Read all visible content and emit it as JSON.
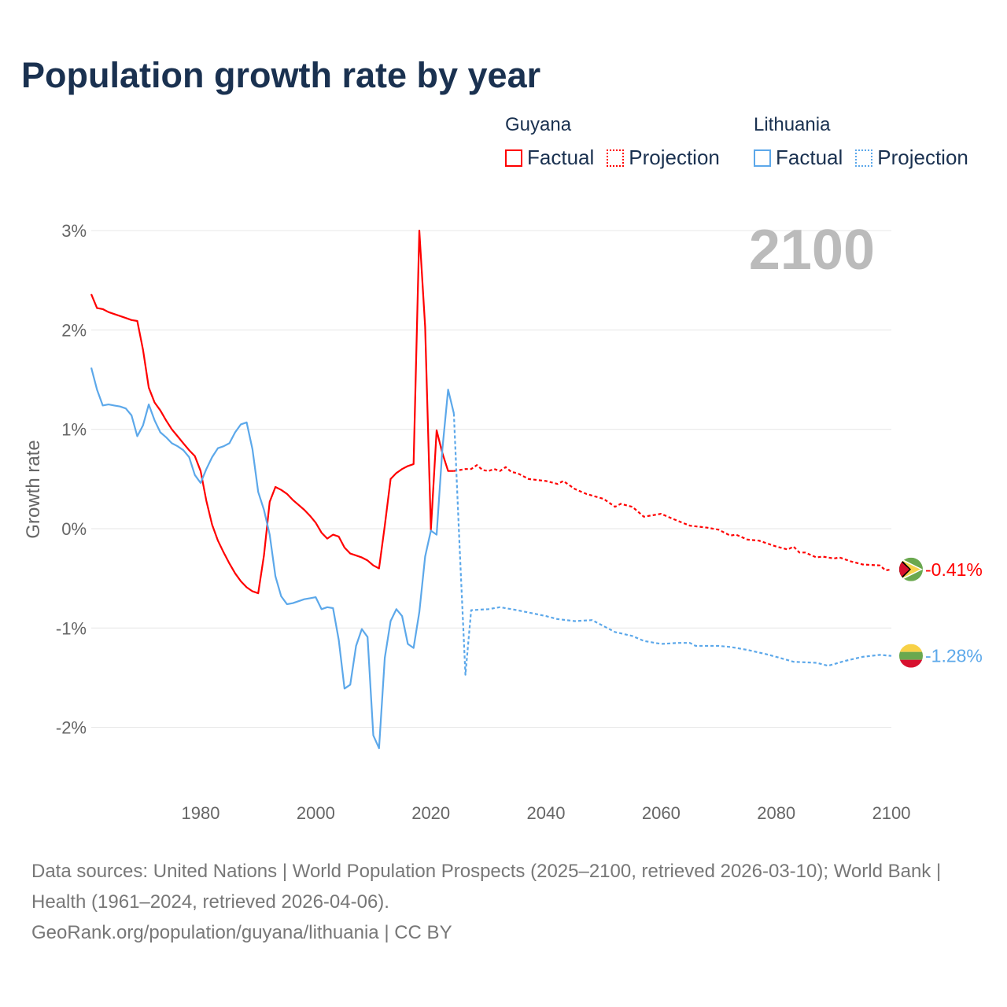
{
  "title": "Population growth rate by year",
  "legend": {
    "groups": [
      {
        "name": "Guyana",
        "factual": "Factual",
        "projection": "Projection",
        "color": "#ff0000"
      },
      {
        "name": "Lithuania",
        "factual": "Factual",
        "projection": "Projection",
        "color": "#5ca8ea"
      }
    ]
  },
  "source_lines": [
    "Data sources: United Nations | World Population Prospects (2025–2100, retrieved 2026-03-10); World Bank | Health (1961–2024, retrieved 2026-04-06).",
    "GeoRank.org/population/guyana/lithuania | CC BY"
  ],
  "chart_data": {
    "type": "line",
    "title": "Population growth rate by year",
    "ylabel": "Growth rate",
    "xlabel": "",
    "year_label": "2100",
    "xlim": [
      1961,
      2100
    ],
    "ylim": [
      -2.6,
      3.2
    ],
    "x_ticks": [
      1980,
      2000,
      2020,
      2040,
      2060,
      2080,
      2100
    ],
    "y_ticks": [
      -2,
      -1,
      0,
      1,
      2,
      3
    ],
    "y_tick_labels": [
      "-2%",
      "-1%",
      "0%",
      "1%",
      "2%",
      "3%"
    ],
    "grid": true,
    "legend_placement": "top-right",
    "series": [
      {
        "name": "Guyana",
        "kind": "Factual",
        "color": "#ff0000",
        "x": [
          1961,
          1962,
          1963,
          1964,
          1965,
          1966,
          1967,
          1968,
          1969,
          1970,
          1971,
          1972,
          1973,
          1974,
          1975,
          1976,
          1977,
          1978,
          1979,
          1980,
          1981,
          1982,
          1983,
          1984,
          1985,
          1986,
          1987,
          1988,
          1989,
          1990,
          1991,
          1992,
          1993,
          1994,
          1995,
          1996,
          1997,
          1998,
          1999,
          2000,
          2001,
          2002,
          2003,
          2004,
          2005,
          2006,
          2007,
          2008,
          2009,
          2010,
          2011,
          2012,
          2013,
          2014,
          2015,
          2016,
          2017,
          2018,
          2019,
          2020,
          2021,
          2022,
          2023,
          2024
        ],
        "y": [
          2.36,
          2.22,
          2.21,
          2.18,
          2.16,
          2.14,
          2.12,
          2.1,
          2.09,
          1.8,
          1.42,
          1.27,
          1.19,
          1.09,
          1.0,
          0.93,
          0.86,
          0.79,
          0.73,
          0.58,
          0.28,
          0.04,
          -0.12,
          -0.24,
          -0.35,
          -0.45,
          -0.53,
          -0.59,
          -0.63,
          -0.65,
          -0.27,
          0.27,
          0.42,
          0.39,
          0.35,
          0.29,
          0.24,
          0.19,
          0.13,
          0.06,
          -0.04,
          -0.1,
          -0.06,
          -0.08,
          -0.19,
          -0.25,
          -0.27,
          -0.29,
          -0.32,
          -0.37,
          -0.4,
          0.03,
          0.5,
          0.56,
          0.6,
          0.63,
          0.65,
          3.0,
          2.03,
          -0.01,
          0.99,
          0.76,
          0.58,
          0.58
        ]
      },
      {
        "name": "Guyana",
        "kind": "Projection",
        "color": "#ff0000",
        "x": [
          2024,
          2026,
          2027,
          2028,
          2029,
          2030,
          2031,
          2032,
          2033,
          2034,
          2035,
          2037,
          2040,
          2042,
          2043,
          2045,
          2047,
          2050,
          2052,
          2053,
          2055,
          2057,
          2060,
          2062,
          2065,
          2068,
          2070,
          2072,
          2073,
          2075,
          2077,
          2080,
          2082,
          2083,
          2084,
          2085,
          2087,
          2088,
          2090,
          2091,
          2093,
          2095,
          2098,
          2099,
          2100
        ],
        "y": [
          0.58,
          0.6,
          0.6,
          0.64,
          0.59,
          0.58,
          0.6,
          0.58,
          0.62,
          0.57,
          0.56,
          0.5,
          0.48,
          0.45,
          0.48,
          0.4,
          0.35,
          0.3,
          0.22,
          0.25,
          0.22,
          0.12,
          0.15,
          0.1,
          0.03,
          0.01,
          -0.01,
          -0.07,
          -0.06,
          -0.11,
          -0.12,
          -0.18,
          -0.21,
          -0.18,
          -0.24,
          -0.24,
          -0.29,
          -0.28,
          -0.3,
          -0.29,
          -0.33,
          -0.36,
          -0.37,
          -0.42,
          -0.41
        ]
      },
      {
        "name": "Lithuania",
        "kind": "Factual",
        "color": "#5ca8ea",
        "x": [
          1961,
          1962,
          1963,
          1964,
          1965,
          1966,
          1967,
          1968,
          1969,
          1970,
          1971,
          1972,
          1973,
          1974,
          1975,
          1976,
          1977,
          1978,
          1979,
          1980,
          1981,
          1982,
          1983,
          1984,
          1985,
          1986,
          1987,
          1988,
          1989,
          1990,
          1991,
          1992,
          1993,
          1994,
          1995,
          1996,
          1997,
          1998,
          1999,
          2000,
          2001,
          2002,
          2003,
          2004,
          2005,
          2006,
          2007,
          2008,
          2009,
          2010,
          2011,
          2012,
          2013,
          2014,
          2015,
          2016,
          2017,
          2018,
          2019,
          2020,
          2021,
          2022,
          2023,
          2024
        ],
        "y": [
          1.62,
          1.4,
          1.24,
          1.25,
          1.24,
          1.23,
          1.21,
          1.14,
          0.93,
          1.04,
          1.25,
          1.09,
          0.97,
          0.92,
          0.86,
          0.83,
          0.79,
          0.72,
          0.54,
          0.46,
          0.6,
          0.72,
          0.81,
          0.83,
          0.86,
          0.97,
          1.05,
          1.07,
          0.8,
          0.37,
          0.19,
          -0.06,
          -0.48,
          -0.68,
          -0.76,
          -0.75,
          -0.73,
          -0.71,
          -0.7,
          -0.69,
          -0.81,
          -0.79,
          -0.8,
          -1.12,
          -1.61,
          -1.57,
          -1.18,
          -1.01,
          -1.09,
          -2.08,
          -2.21,
          -1.3,
          -0.93,
          -0.81,
          -0.88,
          -1.16,
          -1.2,
          -0.84,
          -0.28,
          -0.02,
          -0.06,
          0.8,
          1.4,
          1.16
        ]
      },
      {
        "name": "Lithuania",
        "kind": "Projection",
        "color": "#5ca8ea",
        "x": [
          2024,
          2025,
          2026,
          2027,
          2030,
          2032,
          2035,
          2040,
          2042,
          2045,
          2048,
          2050,
          2052,
          2055,
          2057,
          2060,
          2063,
          2065,
          2066,
          2070,
          2072,
          2075,
          2078,
          2080,
          2083,
          2087,
          2089,
          2092,
          2095,
          2098,
          2100
        ],
        "y": [
          1.16,
          -0.2,
          -1.47,
          -0.82,
          -0.81,
          -0.79,
          -0.82,
          -0.88,
          -0.91,
          -0.93,
          -0.92,
          -0.98,
          -1.04,
          -1.08,
          -1.13,
          -1.16,
          -1.15,
          -1.15,
          -1.18,
          -1.18,
          -1.19,
          -1.22,
          -1.26,
          -1.29,
          -1.34,
          -1.35,
          -1.38,
          -1.33,
          -1.29,
          -1.27,
          -1.28
        ]
      }
    ],
    "end_labels": [
      {
        "name": "Guyana",
        "value": -0.41,
        "label": "-0.41%",
        "color": "#ff0000"
      },
      {
        "name": "Lithuania",
        "value": -1.28,
        "label": "-1.28%",
        "color": "#5ca8ea"
      }
    ]
  }
}
